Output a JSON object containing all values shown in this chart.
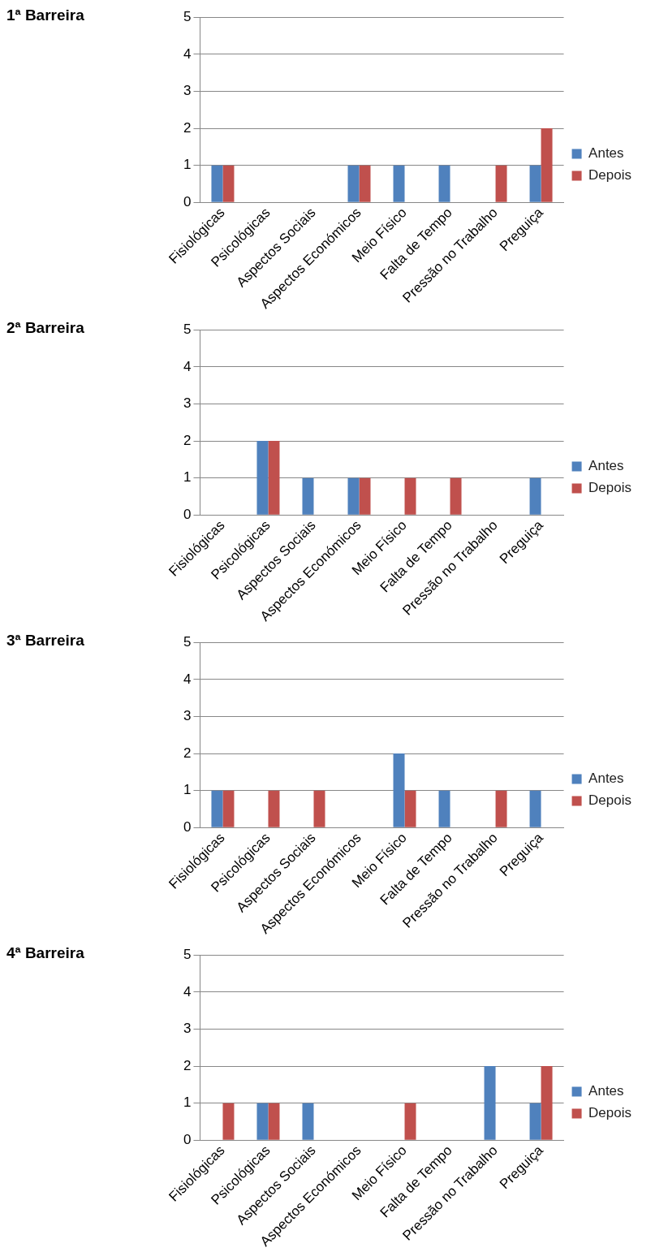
{
  "chart_data": [
    {
      "type": "bar",
      "title": "1ª Barreira",
      "categories": [
        "Fisiológicas",
        "Psicológicas",
        "Aspectos Sociais",
        "Aspectos Económicos",
        "Meio Físico",
        "Falta de Tempo",
        "Pressão no Trabalho",
        "Preguiça"
      ],
      "series": [
        {
          "name": "Antes",
          "color": "#4f81bd",
          "values": [
            1,
            0,
            0,
            1,
            1,
            1,
            0,
            1
          ]
        },
        {
          "name": "Depois",
          "color": "#c0504d",
          "values": [
            1,
            0,
            0,
            1,
            0,
            0,
            1,
            2
          ]
        }
      ],
      "ylim": [
        0,
        5
      ],
      "yticks": [
        0,
        1,
        2,
        3,
        4,
        5
      ],
      "grid": "y",
      "legend": "right"
    },
    {
      "type": "bar",
      "title": "2ª Barreira",
      "categories": [
        "Fisiológicas",
        "Psicológicas",
        "Aspectos Sociais",
        "Aspectos Económicos",
        "Meio Físico",
        "Falta de Tempo",
        "Pressão no Trabalho",
        "Preguiça"
      ],
      "series": [
        {
          "name": "Antes",
          "color": "#4f81bd",
          "values": [
            0,
            2,
            1,
            1,
            0,
            0,
            0,
            1
          ]
        },
        {
          "name": "Depois",
          "color": "#c0504d",
          "values": [
            0,
            2,
            0,
            1,
            1,
            1,
            0,
            0
          ]
        }
      ],
      "ylim": [
        0,
        5
      ],
      "yticks": [
        0,
        1,
        2,
        3,
        4,
        5
      ],
      "grid": "y",
      "legend": "right"
    },
    {
      "type": "bar",
      "title": "3ª Barreira",
      "categories": [
        "Fisiológicas",
        "Psicológicas",
        "Aspectos Sociais",
        "Aspectos Económicos",
        "Meio Físico",
        "Falta de Tempo",
        "Pressão no Trabalho",
        "Preguiça"
      ],
      "series": [
        {
          "name": "Antes",
          "color": "#4f81bd",
          "values": [
            1,
            0,
            0,
            0,
            2,
            1,
            0,
            1
          ]
        },
        {
          "name": "Depois",
          "color": "#c0504d",
          "values": [
            1,
            1,
            1,
            0,
            1,
            0,
            1,
            0
          ]
        }
      ],
      "ylim": [
        0,
        5
      ],
      "yticks": [
        0,
        1,
        2,
        3,
        4,
        5
      ],
      "grid": "y",
      "legend": "right"
    },
    {
      "type": "bar",
      "title": "4ª Barreira",
      "categories": [
        "Fisiológicas",
        "Psicológicas",
        "Aspectos Sociais",
        "Aspectos Económicos",
        "Meio Físico",
        "Falta de Tempo",
        "Pressão no Trabalho",
        "Preguiça"
      ],
      "series": [
        {
          "name": "Antes",
          "color": "#4f81bd",
          "values": [
            0,
            1,
            1,
            0,
            0,
            0,
            2,
            1
          ]
        },
        {
          "name": "Depois",
          "color": "#c0504d",
          "values": [
            1,
            1,
            0,
            0,
            1,
            0,
            0,
            2
          ]
        }
      ],
      "ylim": [
        0,
        5
      ],
      "yticks": [
        0,
        1,
        2,
        3,
        4,
        5
      ],
      "grid": "y",
      "legend": "right"
    }
  ]
}
